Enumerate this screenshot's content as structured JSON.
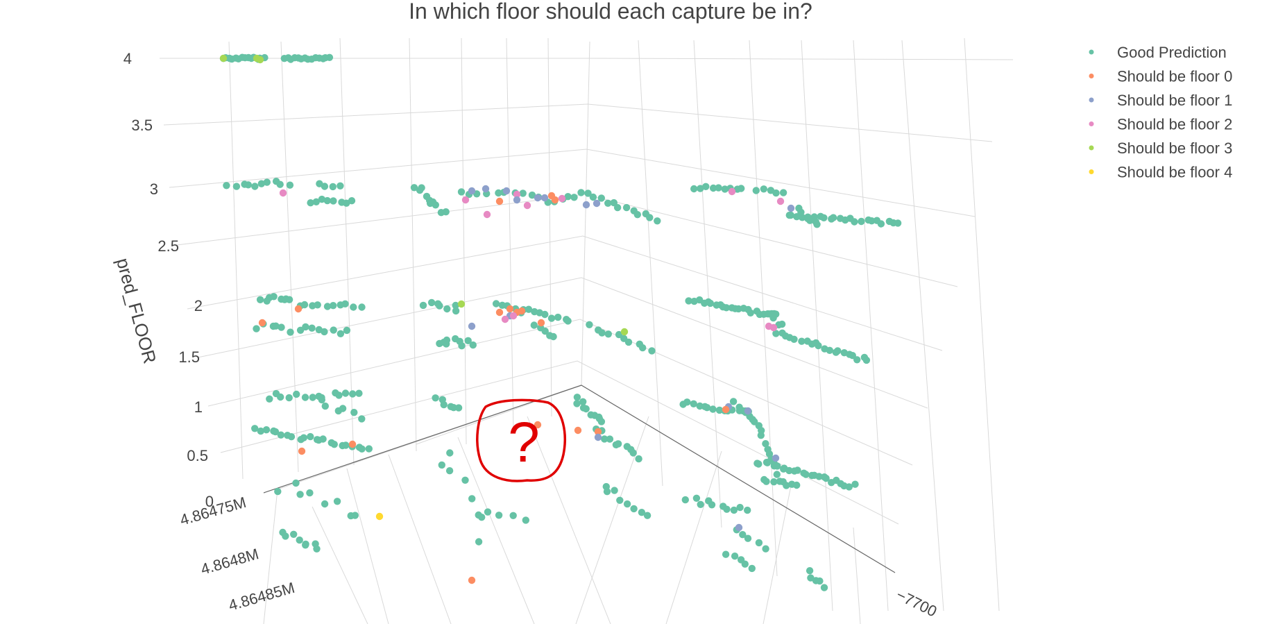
{
  "chart_data": {
    "type": "scatter",
    "title": "In which floor should each capture be in?",
    "zlabel": "pred_FLOOR",
    "z_ticks": [
      "0",
      "0.5",
      "1",
      "1.5",
      "2",
      "2.5",
      "3",
      "3.5",
      "4"
    ],
    "y_ticks": [
      "4.86475M",
      "4.8648M",
      "4.86485M"
    ],
    "x_ticks": [
      "−7700"
    ],
    "legend_position": "top-right",
    "series": [
      {
        "name": "Good Prediction",
        "color": "#66c2a5"
      },
      {
        "name": "Should be floor 0",
        "color": "#fc8d62"
      },
      {
        "name": "Should be floor 1",
        "color": "#8da0cb"
      },
      {
        "name": "Should be floor 2",
        "color": "#e78ac3"
      },
      {
        "name": "Should be floor 3",
        "color": "#a6d854"
      },
      {
        "name": "Should be floor 4",
        "color": "#ffd92f"
      }
    ],
    "annotation": {
      "glyph": "?",
      "color": "#e00000"
    }
  }
}
